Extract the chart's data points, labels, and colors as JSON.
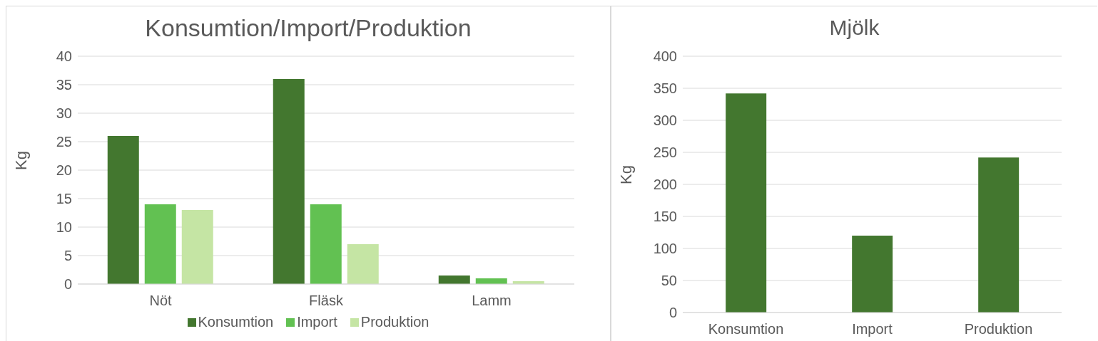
{
  "chart_data": [
    {
      "type": "bar",
      "title": "Konsumtion/Import/Produktion",
      "ylabel": "Kg",
      "categories": [
        "Nöt",
        "Fläsk",
        "Lamm"
      ],
      "series": [
        {
          "name": "Konsumtion",
          "color": "#43772f",
          "values": [
            26,
            36,
            1.5
          ]
        },
        {
          "name": "Import",
          "color": "#62c152",
          "values": [
            14,
            14,
            1
          ]
        },
        {
          "name": "Produktion",
          "color": "#c5e5a4",
          "values": [
            13,
            7,
            0.5
          ]
        }
      ],
      "ylim": [
        0,
        40
      ],
      "yticks": [
        0,
        5,
        10,
        15,
        20,
        25,
        30,
        35,
        40
      ],
      "grid": "y",
      "legend": "bottom"
    },
    {
      "type": "bar",
      "title": "Mjölk",
      "ylabel": "Kg",
      "categories": [
        "Konsumtion",
        "Import",
        "Produktion"
      ],
      "values": [
        342,
        120,
        242
      ],
      "color": "#43772f",
      "ylim": [
        0,
        400
      ],
      "yticks": [
        0,
        50,
        100,
        150,
        200,
        250,
        300,
        350,
        400
      ],
      "grid": "y"
    }
  ]
}
